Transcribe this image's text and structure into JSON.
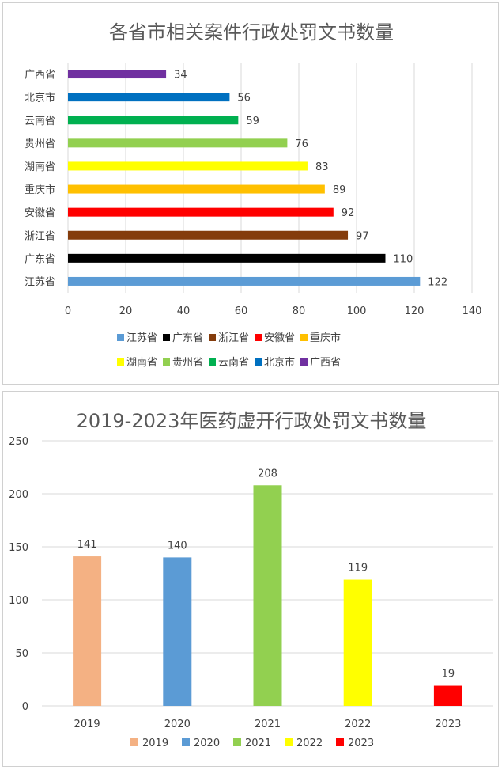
{
  "chart_data": [
    {
      "type": "bar",
      "orientation": "horizontal",
      "title": "各省市相关案件行政处罚文书数量",
      "categories": [
        "江苏省",
        "广东省",
        "浙江省",
        "安徽省",
        "重庆市",
        "湖南省",
        "贵州省",
        "云南省",
        "北京市",
        "广西省"
      ],
      "values": [
        122,
        110,
        97,
        92,
        89,
        83,
        76,
        59,
        56,
        34
      ],
      "colors": [
        "#5b9bd5",
        "#000000",
        "#843c0c",
        "#ff0000",
        "#ffc000",
        "#ffff00",
        "#92d050",
        "#00b050",
        "#0070c0",
        "#7030a0"
      ],
      "xlim": [
        0,
        140
      ],
      "xticks": [
        0,
        20,
        40,
        60,
        80,
        100,
        120,
        140
      ],
      "grid": "vertical",
      "legend": "bottom"
    },
    {
      "type": "bar",
      "orientation": "vertical",
      "title": "2019-2023年医药虚开行政处罚文书数量",
      "categories": [
        "2019",
        "2020",
        "2021",
        "2022",
        "2023"
      ],
      "values": [
        141,
        140,
        208,
        119,
        19
      ],
      "colors": [
        "#f4b183",
        "#5b9bd5",
        "#92d050",
        "#ffff00",
        "#ff0000"
      ],
      "ylim": [
        0,
        250
      ],
      "yticks": [
        0,
        50,
        100,
        150,
        200,
        250
      ],
      "grid": "horizontal",
      "legend": "bottom"
    }
  ]
}
